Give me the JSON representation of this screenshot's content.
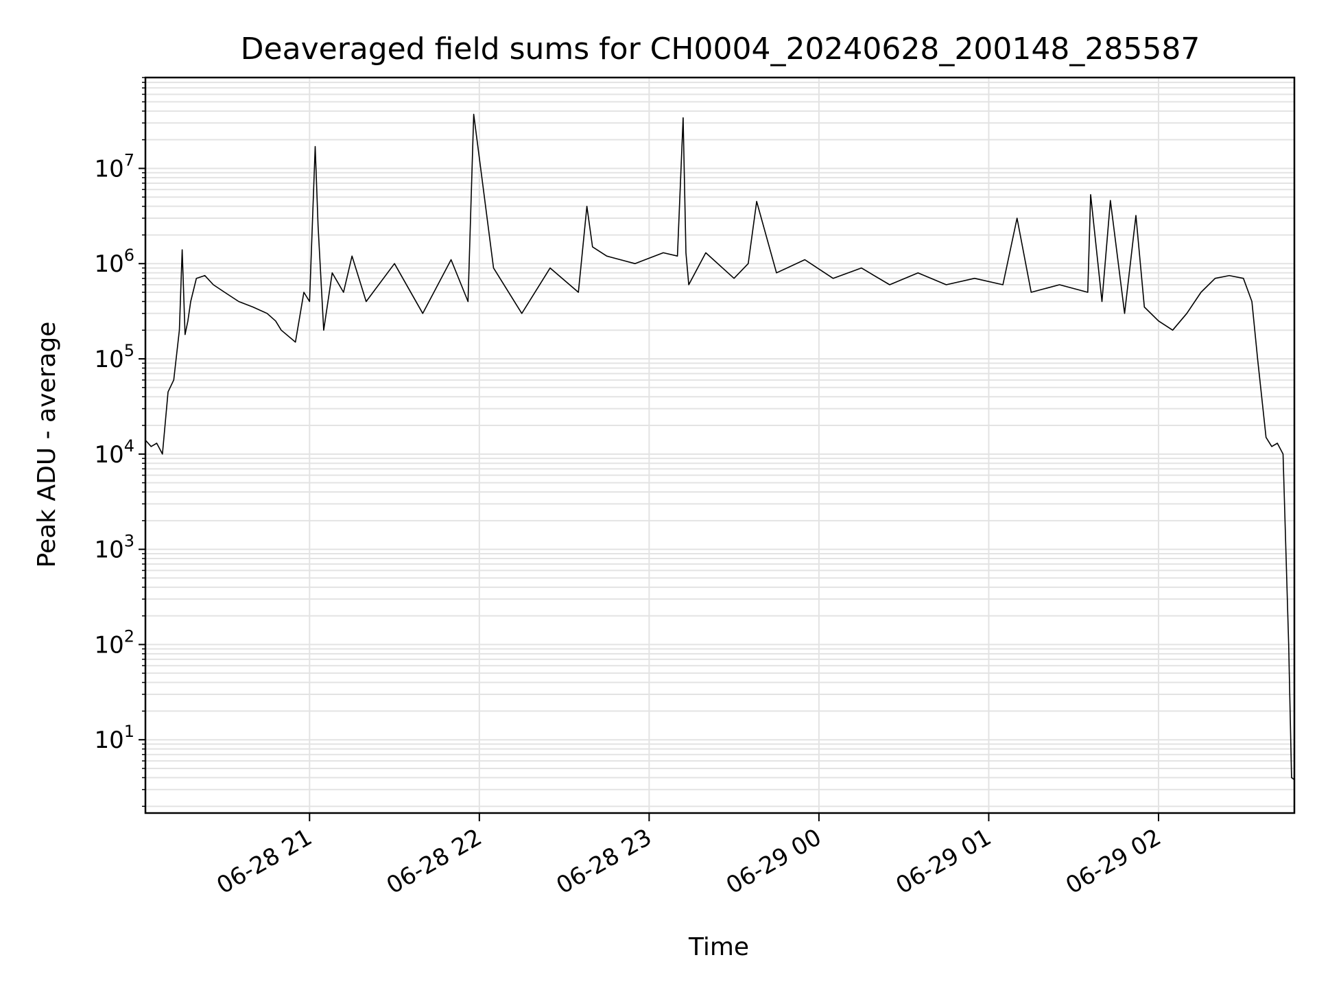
{
  "chart_data": {
    "type": "line",
    "title": "Deaveraged field sums for CH0004_20240628_200148_285587",
    "xlabel": "Time",
    "ylabel": "Peak ADU - average",
    "yscale": "log",
    "ylim": [
      1.7,
      90000000
    ],
    "xlim": [
      "06-28 20:02",
      "06-29 02:48"
    ],
    "grid": true,
    "legend": "none",
    "line_color": "#000000",
    "grid_color": "#e3e3e3",
    "x_ticks": [
      {
        "label": "06-28 21",
        "value": "06-28 21:00"
      },
      {
        "label": "06-28 22",
        "value": "06-28 22:00"
      },
      {
        "label": "06-28 23",
        "value": "06-28 23:00"
      },
      {
        "label": "06-29 00",
        "value": "06-29 00:00"
      },
      {
        "label": "06-29 01",
        "value": "06-29 01:00"
      },
      {
        "label": "06-29 02",
        "value": "06-29 02:00"
      }
    ],
    "y_ticks": [
      {
        "base": "10",
        "exp": "1",
        "value": 10
      },
      {
        "base": "10",
        "exp": "2",
        "value": 100
      },
      {
        "base": "10",
        "exp": "3",
        "value": 1000
      },
      {
        "base": "10",
        "exp": "4",
        "value": 10000
      },
      {
        "base": "10",
        "exp": "5",
        "value": 100000
      },
      {
        "base": "10",
        "exp": "6",
        "value": 1000000
      },
      {
        "base": "10",
        "exp": "7",
        "value": 10000000
      }
    ],
    "series": [
      {
        "x": [
          "06-28 20:02",
          "06-28 20:04",
          "06-28 20:06",
          "06-28 20:08",
          "06-28 20:10",
          "06-28 20:12",
          "06-28 20:14",
          "06-28 20:15",
          "06-28 20:16",
          "06-28 20:17",
          "06-28 20:18",
          "06-28 20:20",
          "06-28 20:23",
          "06-28 20:26",
          "06-28 20:30",
          "06-28 20:35",
          "06-28 20:40",
          "06-28 20:45",
          "06-28 20:48",
          "06-28 20:50",
          "06-28 20:55",
          "06-28 20:58",
          "06-28 21:00",
          "06-28 21:02",
          "06-28 21:03",
          "06-28 21:05",
          "06-28 21:08",
          "06-28 21:12",
          "06-28 21:15",
          "06-28 21:20",
          "06-28 21:30",
          "06-28 21:40",
          "06-28 21:50",
          "06-28 21:56",
          "06-28 21:58",
          "06-28 22:05",
          "06-28 22:15",
          "06-28 22:25",
          "06-28 22:35",
          "06-28 22:38",
          "06-28 22:40",
          "06-28 22:45",
          "06-28 22:55",
          "06-28 23:05",
          "06-28 23:10",
          "06-28 23:12",
          "06-28 23:13",
          "06-28 23:14",
          "06-28 23:20",
          "06-28 23:30",
          "06-28 23:35",
          "06-28 23:38",
          "06-28 23:45",
          "06-28 23:55",
          "06-29 00:05",
          "06-29 00:15",
          "06-29 00:25",
          "06-29 00:35",
          "06-29 00:45",
          "06-29 00:55",
          "06-29 01:05",
          "06-29 01:10",
          "06-29 01:15",
          "06-29 01:25",
          "06-29 01:35",
          "06-29 01:36",
          "06-29 01:40",
          "06-29 01:43",
          "06-29 01:48",
          "06-29 01:52",
          "06-29 01:55",
          "06-29 02:00",
          "06-29 02:05",
          "06-29 02:10",
          "06-29 02:15",
          "06-29 02:20",
          "06-29 02:25",
          "06-29 02:30",
          "06-29 02:33",
          "06-29 02:35",
          "06-29 02:38",
          "06-29 02:40",
          "06-29 02:42",
          "06-29 02:44",
          "06-29 02:45",
          "06-29 02:46",
          "06-29 02:47",
          "06-29 02:48"
        ],
        "y": [
          14000,
          12000,
          13000,
          10000,
          45000,
          60000,
          200000,
          1400000,
          180000,
          250000,
          400000,
          700000,
          750000,
          600000,
          500000,
          400000,
          350000,
          300000,
          250000,
          200000,
          150000,
          500000,
          400000,
          17000000,
          2500000,
          200000,
          800000,
          500000,
          1200000,
          400000,
          1000000,
          300000,
          1100000,
          400000,
          37000000,
          900000,
          300000,
          900000,
          500000,
          4000000,
          1500000,
          1200000,
          1000000,
          1300000,
          1200000,
          34000000,
          1300000,
          600000,
          1300000,
          700000,
          1000000,
          4500000,
          800000,
          1100000,
          700000,
          900000,
          600000,
          800000,
          600000,
          700000,
          600000,
          3000000,
          500000,
          600000,
          500000,
          5300000,
          400000,
          4600000,
          300000,
          3200000,
          350000,
          250000,
          200000,
          300000,
          500000,
          700000,
          750000,
          700000,
          400000,
          100000,
          15000,
          12000,
          13000,
          10000,
          1000,
          100,
          4,
          3.8
        ]
      }
    ]
  }
}
